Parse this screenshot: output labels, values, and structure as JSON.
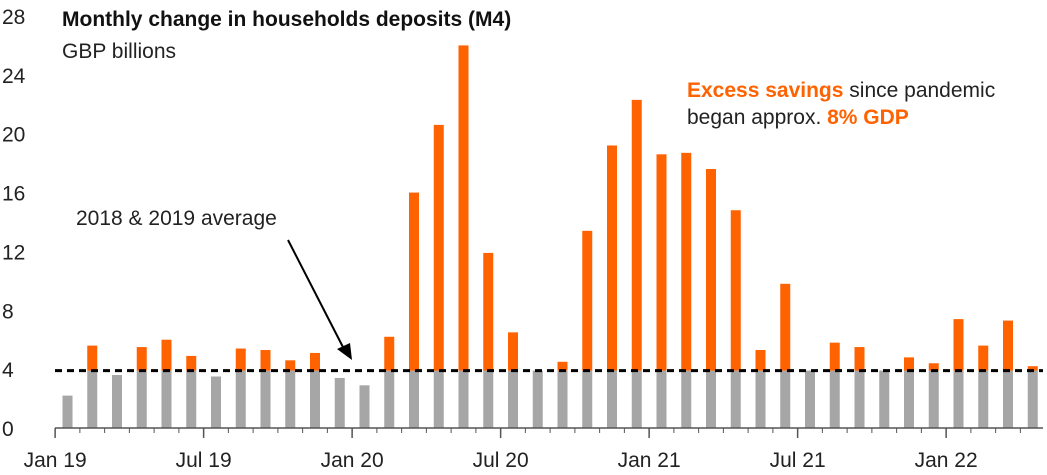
{
  "chart_data": {
    "type": "bar",
    "title": "Monthly change in households deposits (M4)",
    "subtitle": "GBP billions",
    "ylim": [
      0,
      28
    ],
    "yticks": [
      0,
      4,
      8,
      12,
      16,
      20,
      24,
      28
    ],
    "x_tick_labels": [
      {
        "index": 0,
        "label": "Jan 19"
      },
      {
        "index": 6,
        "label": "Jul 19"
      },
      {
        "index": 12,
        "label": "Jan 20"
      },
      {
        "index": 18,
        "label": "Jul 20"
      },
      {
        "index": 24,
        "label": "Jan 21"
      },
      {
        "index": 30,
        "label": "Jul 21"
      },
      {
        "index": 36,
        "label": "Jan 22"
      }
    ],
    "baseline": {
      "value": 3.9,
      "label": "2018 & 2019 average"
    },
    "values": [
      2.2,
      5.6,
      3.6,
      5.5,
      6.0,
      4.9,
      3.5,
      5.4,
      5.3,
      4.6,
      5.1,
      3.4,
      2.9,
      6.2,
      16.0,
      20.6,
      26.0,
      11.9,
      6.5,
      3.9,
      4.5,
      13.4,
      19.2,
      22.3,
      18.6,
      18.7,
      17.6,
      14.8,
      5.3,
      9.8,
      3.9,
      5.8,
      5.5,
      3.9,
      4.8,
      4.4,
      7.4,
      5.6,
      7.3,
      4.2
    ],
    "colors": {
      "baseline_portion": "#a6a6a6",
      "excess_portion": "#ff6200",
      "average_line": "#000000",
      "axis": "#555555"
    },
    "annotations": {
      "excess_label": "Excess savings",
      "excess_mid": " since pandemic",
      "excess_line2": "began approx. ",
      "excess_pct": "8% GDP"
    }
  }
}
